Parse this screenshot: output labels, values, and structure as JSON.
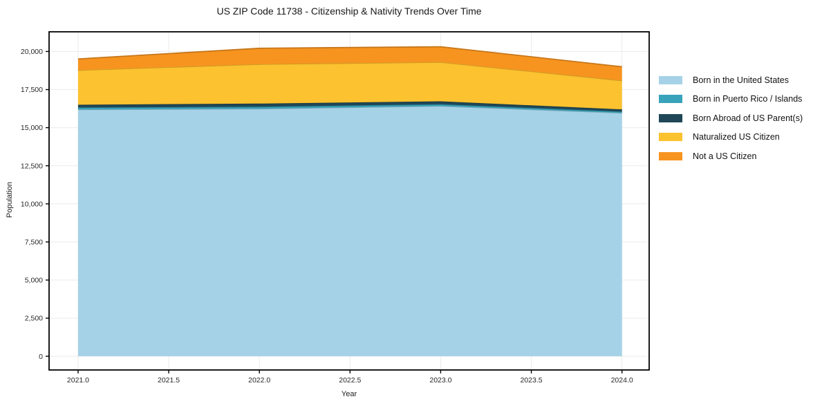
{
  "title": "US ZIP Code 11738 - Citizenship & Nativity Trends Over Time",
  "chart_data": {
    "type": "area",
    "stacked": true,
    "title": "US ZIP Code 11738 - Citizenship & Nativity Trends Over Time",
    "xlabel": "Year",
    "ylabel": "Population",
    "x": [
      2021,
      2022,
      2023,
      2024
    ],
    "x_ticks": [
      2021.0,
      2021.5,
      2022.0,
      2022.5,
      2023.0,
      2023.5,
      2024.0
    ],
    "x_tick_labels": [
      "2021.0",
      "2021.5",
      "2022.0",
      "2022.5",
      "2023.0",
      "2023.5",
      "2024.0"
    ],
    "y_ticks": [
      0,
      2500,
      5000,
      7500,
      10000,
      12500,
      15000,
      17500,
      20000
    ],
    "y_tick_labels": [
      "0",
      "2,500",
      "5,000",
      "7,500",
      "10,000",
      "12,500",
      "15,000",
      "17,500",
      "20,000"
    ],
    "xlim": [
      2020.84,
      2024.15
    ],
    "ylim": [
      -900,
      21290
    ],
    "grid": true,
    "legend_position": "right",
    "series": [
      {
        "name": "Born in the United States",
        "color": "#a6d2e7",
        "values": [
          16190,
          16240,
          16420,
          15965
        ]
      },
      {
        "name": "Born in Puerto Rico / Islands",
        "color": "#38a3ba",
        "values": [
          135,
          135,
          115,
          90
        ]
      },
      {
        "name": "Born Abroad of US Parent(s)",
        "color": "#1f4757",
        "values": [
          180,
          205,
          195,
          145
        ]
      },
      {
        "name": "Naturalized US Citizen",
        "color": "#fcc22f",
        "values": [
          2270,
          2585,
          2570,
          1890
        ]
      },
      {
        "name": "Not a US Citizen",
        "color": "#f7941f",
        "values": [
          735,
          1045,
          1010,
          905
        ]
      }
    ],
    "totals": [
      19510,
      20210,
      20310,
      18995
    ],
    "colors": {
      "grid": "#ebebeb",
      "spine": "#000000",
      "tick_label": "#262626",
      "background": "#ffffff"
    }
  }
}
